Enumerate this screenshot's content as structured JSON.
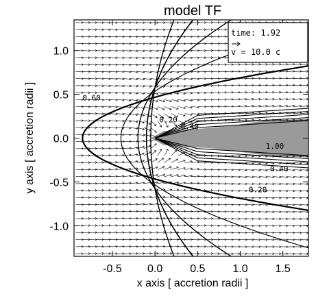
{
  "chart_data": {
    "type": "vector_field_contour",
    "title": "model TF",
    "xlabel": "x axis [ accretion radii ]",
    "ylabel": "y axis [ accretion radii ]",
    "xlim": [
      -0.95,
      1.8
    ],
    "ylim": [
      -1.35,
      1.35
    ],
    "x_ticks": [
      -0.5,
      0.0,
      0.5,
      1.0,
      1.5
    ],
    "x_tick_labels": [
      "-0.5",
      "0.0",
      "0.5",
      "1.0",
      "1.5"
    ],
    "y_ticks": [
      -1.0,
      -0.5,
      0.0,
      0.5,
      1.0
    ],
    "y_tick_labels": [
      "-1.0",
      "-0.5",
      "0.0",
      "0.5",
      "1.0"
    ],
    "contour_labels": [
      {
        "text": "0.60",
        "x": -0.85,
        "y": 0.43
      },
      {
        "text": "0.20",
        "x": 0.05,
        "y": 0.18
      },
      {
        "text": "0.40",
        "x": 0.3,
        "y": 0.1
      },
      {
        "text": "1.00",
        "x": 1.3,
        "y": -0.12
      },
      {
        "text": "0.40",
        "x": 1.35,
        "y": -0.38
      },
      {
        "text": "0.20",
        "x": 1.1,
        "y": -0.62
      }
    ],
    "legend": {
      "time_label": "time: 1.92",
      "vector_label": "v = 10.0 c"
    },
    "grid": false
  }
}
